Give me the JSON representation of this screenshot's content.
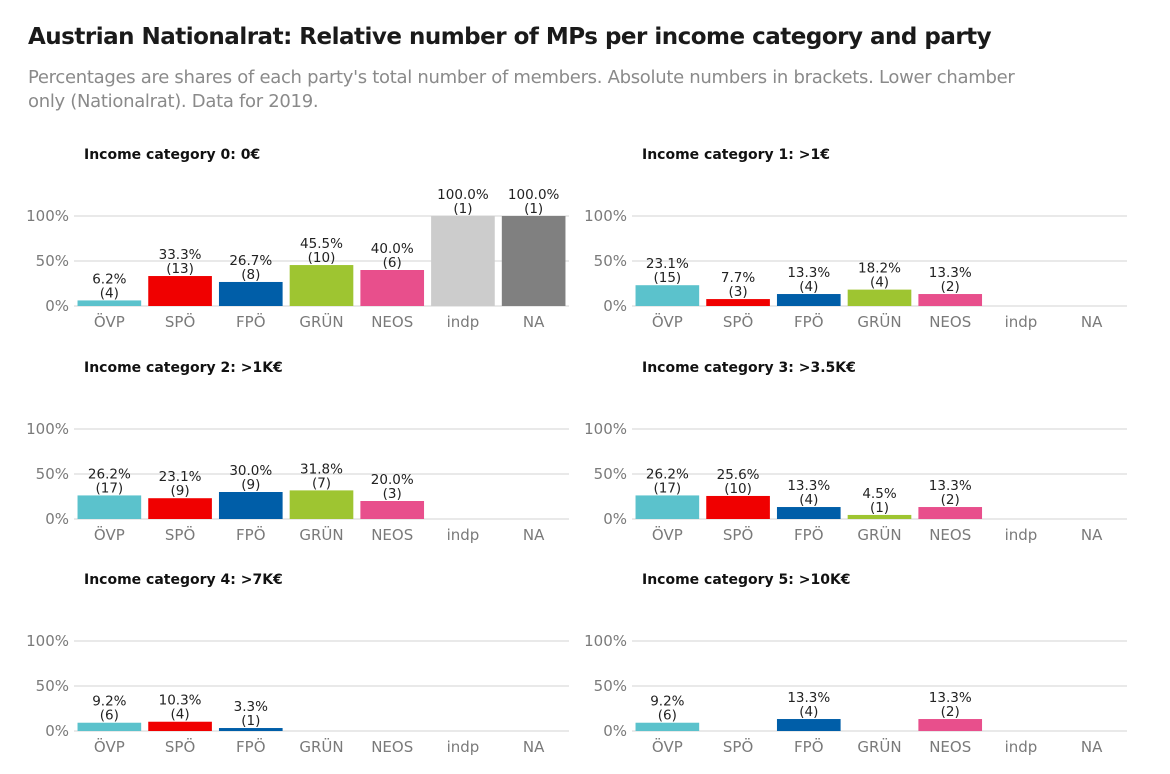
{
  "title": "Austrian Nationalrat: Relative number of MPs per income category and party",
  "subtitle": "Percentages are shares of each party's total number of members. Absolute numbers in brackets. Lower chamber only (Nationalrat). Data for 2019.",
  "colors": {
    "ÖVP": "#5bc2cc",
    "SPÖ": "#f00000",
    "FPÖ": "#005ea8",
    "GRÜN": "#9ec531",
    "NEOS": "#e84f8c",
    "indp": "#cccccc",
    "NA": "#808080",
    "grid": "#d3d3d3"
  },
  "chart_data": [
    {
      "type": "bar",
      "title": "Income category 0: 0€",
      "categories": [
        "ÖVP",
        "SPÖ",
        "FPÖ",
        "GRÜN",
        "NEOS",
        "indp",
        "NA"
      ],
      "values": [
        6.2,
        33.3,
        26.7,
        45.5,
        40.0,
        100.0,
        100.0
      ],
      "counts": [
        4,
        13,
        8,
        10,
        6,
        1,
        1
      ],
      "yticks": [
        "100%",
        "50%",
        "0%"
      ],
      "ylim": [
        0,
        100
      ]
    },
    {
      "type": "bar",
      "title": "Income category 1: >1€",
      "categories": [
        "ÖVP",
        "SPÖ",
        "FPÖ",
        "GRÜN",
        "NEOS",
        "indp",
        "NA"
      ],
      "values": [
        23.1,
        7.7,
        13.3,
        18.2,
        13.3,
        null,
        null
      ],
      "counts": [
        15,
        3,
        4,
        4,
        2,
        null,
        null
      ],
      "yticks": [
        "100%",
        "50%",
        "0%"
      ],
      "ylim": [
        0,
        100
      ]
    },
    {
      "type": "bar",
      "title": "Income category 2: >1K€",
      "categories": [
        "ÖVP",
        "SPÖ",
        "FPÖ",
        "GRÜN",
        "NEOS",
        "indp",
        "NA"
      ],
      "values": [
        26.2,
        23.1,
        30.0,
        31.8,
        20.0,
        null,
        null
      ],
      "counts": [
        17,
        9,
        9,
        7,
        3,
        null,
        null
      ],
      "yticks": [
        "100%",
        "50%",
        "0%"
      ],
      "ylim": [
        0,
        100
      ]
    },
    {
      "type": "bar",
      "title": "Income category 3: >3.5K€",
      "categories": [
        "ÖVP",
        "SPÖ",
        "FPÖ",
        "GRÜN",
        "NEOS",
        "indp",
        "NA"
      ],
      "values": [
        26.2,
        25.6,
        13.3,
        4.5,
        13.3,
        null,
        null
      ],
      "counts": [
        17,
        10,
        4,
        1,
        2,
        null,
        null
      ],
      "yticks": [
        "100%",
        "50%",
        "0%"
      ],
      "ylim": [
        0,
        100
      ]
    },
    {
      "type": "bar",
      "title": "Income category 4: >7K€",
      "categories": [
        "ÖVP",
        "SPÖ",
        "FPÖ",
        "GRÜN",
        "NEOS",
        "indp",
        "NA"
      ],
      "values": [
        9.2,
        10.3,
        3.3,
        null,
        null,
        null,
        null
      ],
      "counts": [
        6,
        4,
        1,
        null,
        null,
        null,
        null
      ],
      "yticks": [
        "100%",
        "50%",
        "0%"
      ],
      "ylim": [
        0,
        100
      ]
    },
    {
      "type": "bar",
      "title": "Income category 5: >10K€",
      "categories": [
        "ÖVP",
        "SPÖ",
        "FPÖ",
        "GRÜN",
        "NEOS",
        "indp",
        "NA"
      ],
      "values": [
        9.2,
        null,
        13.3,
        null,
        13.3,
        null,
        null
      ],
      "counts": [
        6,
        null,
        4,
        null,
        2,
        null,
        null
      ],
      "yticks": [
        "100%",
        "50%",
        "0%"
      ],
      "ylim": [
        0,
        100
      ]
    }
  ]
}
